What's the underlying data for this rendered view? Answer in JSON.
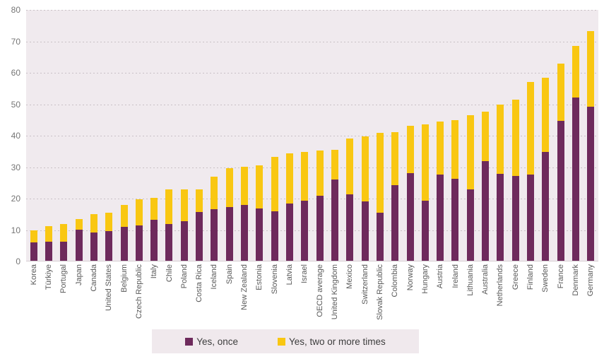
{
  "chart_data": {
    "type": "bar",
    "stacked": true,
    "title": "",
    "xlabel": "",
    "ylabel": "",
    "ylim": [
      0,
      80
    ],
    "yticks": [
      0,
      10,
      20,
      30,
      40,
      50,
      60,
      70,
      80
    ],
    "grid": "horizontal-dotted",
    "legend_position": "bottom",
    "plot_background": "#f0eaee",
    "gridline_color": "#c9c1c6",
    "axis_text_color": "#757575",
    "categories": [
      "Korea",
      "Türkiye",
      "Portugal",
      "Japan",
      "Canada",
      "United States",
      "Belgium",
      "Czech Republic",
      "Italy",
      "Chile",
      "Poland",
      "Costa Rica",
      "Iceland",
      "Spain",
      "New Zealand",
      "Estonia",
      "Slovenia",
      "Latvia",
      "Israel",
      "OECD average",
      "United Kingdom",
      "Mexico",
      "Switzerland",
      "Slovak Republic",
      "Colombia",
      "Norway",
      "Hungary",
      "Austria",
      "Ireland",
      "Lithuania",
      "Australia",
      "Netherlands",
      "Greece",
      "Finland",
      "Sweden",
      "France",
      "Denmark",
      "Germany"
    ],
    "series": [
      {
        "name": "Yes, once",
        "color": "#6e2a5c",
        "values": [
          5.8,
          6.0,
          6.1,
          9.8,
          8.9,
          9.5,
          10.8,
          11.2,
          13.1,
          11.6,
          12.5,
          15.6,
          16.3,
          17.1,
          17.8,
          16.7,
          15.7,
          18.2,
          19.0,
          20.6,
          25.8,
          21.2,
          18.9,
          15.3,
          24.1,
          27.9,
          19.1,
          27.4,
          26.0,
          22.8,
          31.7,
          27.7,
          27.0,
          27.4,
          34.6,
          44.4,
          52.0,
          49.1
        ]
      },
      {
        "name": "Yes, two or more times",
        "color": "#f9c712",
        "values": [
          3.9,
          5.1,
          5.7,
          3.4,
          5.9,
          5.8,
          6.9,
          8.4,
          6.8,
          11.0,
          10.2,
          7.1,
          10.4,
          12.3,
          12.2,
          13.6,
          17.4,
          16.0,
          15.5,
          14.5,
          9.5,
          17.7,
          20.7,
          25.4,
          16.7,
          15.1,
          24.3,
          16.9,
          18.8,
          23.6,
          15.7,
          22.0,
          24.3,
          29.5,
          23.7,
          18.4,
          16.3,
          24.0
        ]
      }
    ]
  },
  "legend": {
    "background": "#f0e9ed",
    "items": [
      {
        "label": "Yes, once",
        "color": "#6e2a5c"
      },
      {
        "label": "Yes, two or more times",
        "color": "#f9c712"
      }
    ]
  }
}
